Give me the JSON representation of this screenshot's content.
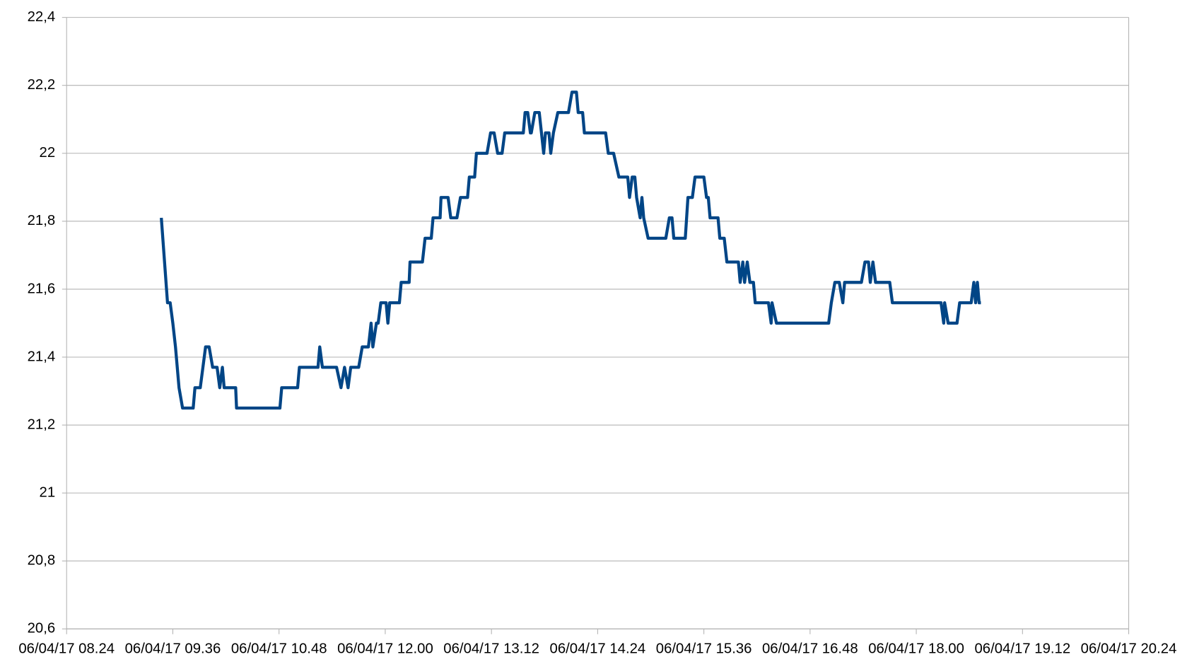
{
  "chart_data": {
    "type": "line",
    "x": [
      9.47,
      9.54,
      9.57,
      9.6,
      9.63,
      9.67,
      9.71,
      9.83,
      9.85,
      9.91,
      9.97,
      10.01,
      10.05,
      10.1,
      10.13,
      10.16,
      10.18,
      10.31,
      10.32,
      10.81,
      10.83,
      11.01,
      11.03,
      11.24,
      11.26,
      11.29,
      11.45,
      11.5,
      11.54,
      11.58,
      11.61,
      11.7,
      11.74,
      11.81,
      11.84,
      11.86,
      11.9,
      11.92,
      11.95,
      12.01,
      12.03,
      12.05,
      12.16,
      12.18,
      12.27,
      12.28,
      12.42,
      12.45,
      12.52,
      12.54,
      12.62,
      12.63,
      12.71,
      12.74,
      12.81,
      12.85,
      12.93,
      12.95,
      13.01,
      13.03,
      13.15,
      13.19,
      13.23,
      13.27,
      13.32,
      13.35,
      13.56,
      13.58,
      13.61,
      13.64,
      13.65,
      13.69,
      13.74,
      13.79,
      13.81,
      13.85,
      13.87,
      13.9,
      13.95,
      14.07,
      14.11,
      14.16,
      14.18,
      14.23,
      14.25,
      14.49,
      14.52,
      14.58,
      14.64,
      14.74,
      14.76,
      14.79,
      14.82,
      14.84,
      14.88,
      14.9,
      14.92,
      14.97,
      15.17,
      15.21,
      15.24,
      15.26,
      15.39,
      15.42,
      15.47,
      15.5,
      15.6,
      15.63,
      15.65,
      15.67,
      15.76,
      15.78,
      15.83,
      15.86,
      15.99,
      16.01,
      16.04,
      16.06,
      16.09,
      16.12,
      16.16,
      16.18,
      16.33,
      16.36,
      16.37,
      16.42,
      17.01,
      17.04,
      17.08,
      17.13,
      17.17,
      17.19,
      17.38,
      17.42,
      17.46,
      17.48,
      17.51,
      17.54,
      17.7,
      17.73,
      18.28,
      18.31,
      18.32,
      18.36,
      18.46,
      18.49,
      18.62,
      18.65,
      18.67,
      18.69,
      18.71,
      18.73
    ],
    "values": [
      21.81,
      21.56,
      21.56,
      21.5,
      21.43,
      21.31,
      21.25,
      21.25,
      21.31,
      21.31,
      21.43,
      21.43,
      21.37,
      21.37,
      21.31,
      21.37,
      21.31,
      21.31,
      21.25,
      21.25,
      21.31,
      21.31,
      21.37,
      21.37,
      21.43,
      21.37,
      21.37,
      21.31,
      21.37,
      21.31,
      21.37,
      21.37,
      21.43,
      21.43,
      21.5,
      21.43,
      21.5,
      21.5,
      21.56,
      21.56,
      21.5,
      21.56,
      21.56,
      21.62,
      21.62,
      21.68,
      21.68,
      21.75,
      21.75,
      21.81,
      21.81,
      21.87,
      21.87,
      21.81,
      21.81,
      21.87,
      21.87,
      21.93,
      21.93,
      22,
      22,
      22.06,
      22.06,
      22,
      22,
      22.06,
      22.06,
      22.12,
      22.12,
      22.06,
      22.06,
      22.12,
      22.12,
      22,
      22.06,
      22.06,
      22,
      22.06,
      22.12,
      22.12,
      22.18,
      22.18,
      22.12,
      22.12,
      22.06,
      22.06,
      22,
      22,
      21.93,
      21.93,
      21.87,
      21.93,
      21.93,
      21.87,
      21.81,
      21.87,
      21.81,
      21.75,
      21.75,
      21.81,
      21.81,
      21.75,
      21.75,
      21.87,
      21.87,
      21.93,
      21.93,
      21.87,
      21.87,
      21.81,
      21.81,
      21.75,
      21.75,
      21.68,
      21.68,
      21.62,
      21.68,
      21.62,
      21.68,
      21.62,
      21.62,
      21.56,
      21.56,
      21.5,
      21.56,
      21.5,
      21.5,
      21.56,
      21.62,
      21.62,
      21.56,
      21.62,
      21.62,
      21.68,
      21.68,
      21.62,
      21.68,
      21.62,
      21.62,
      21.56,
      21.56,
      21.5,
      21.56,
      21.5,
      21.5,
      21.56,
      21.56,
      21.62,
      21.56,
      21.62,
      21.56,
      21.56
    ],
    "color": "#004586",
    "xlim": [
      8.4,
      20.4
    ],
    "xticks": [
      {
        "value": 8.4,
        "label": "06/04/17 08.24"
      },
      {
        "value": 9.6,
        "label": "06/04/17 09.36"
      },
      {
        "value": 10.8,
        "label": "06/04/17 10.48"
      },
      {
        "value": 12.0,
        "label": "06/04/17 12.00"
      },
      {
        "value": 13.2,
        "label": "06/04/17 13.12"
      },
      {
        "value": 14.4,
        "label": "06/04/17 14.24"
      },
      {
        "value": 15.6,
        "label": "06/04/17 15.36"
      },
      {
        "value": 16.8,
        "label": "06/04/17 16.48"
      },
      {
        "value": 18.0,
        "label": "06/04/17 18.00"
      },
      {
        "value": 19.2,
        "label": "06/04/17 19.12"
      },
      {
        "value": 20.4,
        "label": "06/04/17 20.24"
      }
    ],
    "ylim": [
      20.6,
      22.4
    ],
    "yticks": [
      {
        "value": 20.6,
        "label": "20,6"
      },
      {
        "value": 20.8,
        "label": "20,8"
      },
      21,
      {
        "value": 21.2,
        "label": "21,2"
      },
      {
        "value": 21.4,
        "label": "21,4"
      },
      {
        "value": 21.6,
        "label": "21,6"
      },
      {
        "value": 21.8,
        "label": "21,8"
      },
      22,
      {
        "value": 22.2,
        "label": "22,2"
      },
      {
        "value": 22.4,
        "label": "22,4"
      }
    ],
    "grid": true
  }
}
